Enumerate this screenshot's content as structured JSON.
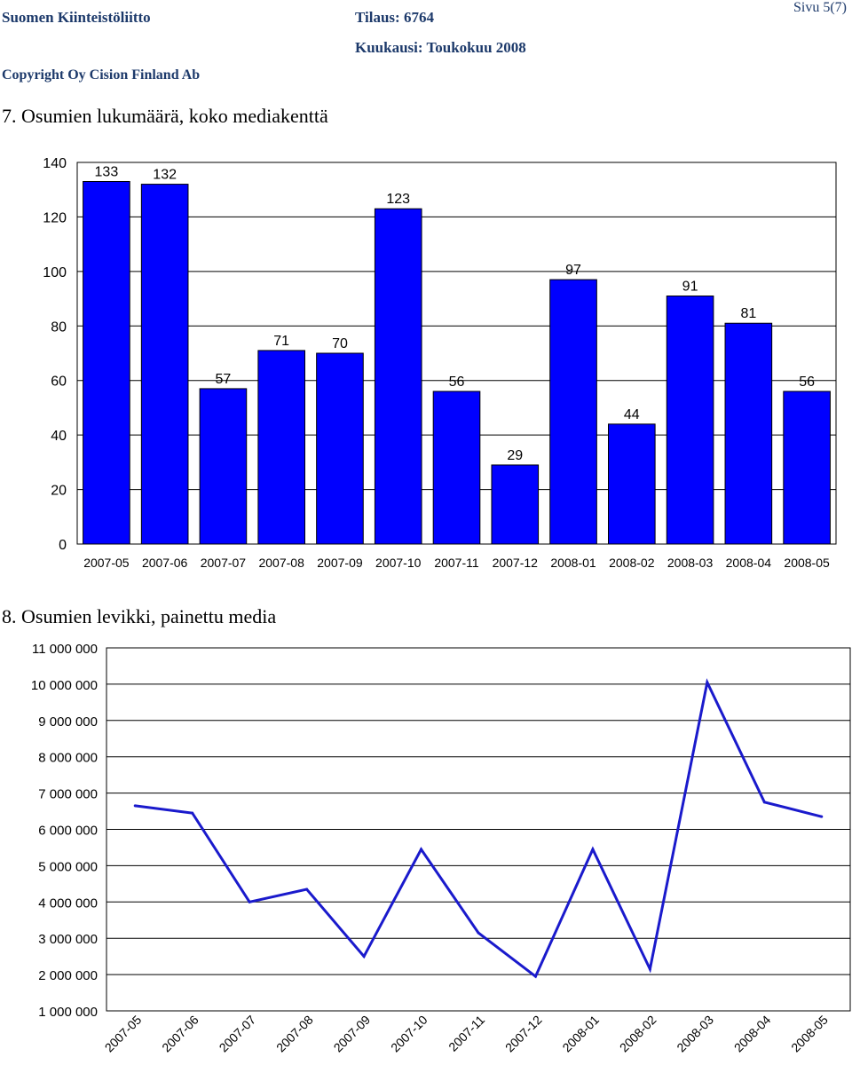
{
  "header": {
    "org": "Suomen Kiinteistöliitto",
    "order": "Tilaus: 6764",
    "month": "Kuukausi: Toukokuu 2008",
    "copyright": "Copyright Oy Cision Finland Ab",
    "page": "Sivu 5(7)"
  },
  "sections": {
    "s7_title": "7. Osumien lukumäärä, koko mediakenttä",
    "s8_title": "8. Osumien levikki, painettu media"
  },
  "colors": {
    "bar_fill": "#0000ff",
    "line_stroke": "#1a1acc",
    "header_text": "#1d3a6b"
  },
  "chart_data": [
    {
      "type": "bar",
      "title": "7. Osumien lukumäärä, koko mediakenttä",
      "categories": [
        "2007-05",
        "2007-06",
        "2007-07",
        "2007-08",
        "2007-09",
        "2007-10",
        "2007-11",
        "2007-12",
        "2008-01",
        "2008-02",
        "2008-03",
        "2008-04",
        "2008-05"
      ],
      "values": [
        133,
        132,
        57,
        71,
        70,
        123,
        56,
        29,
        97,
        44,
        91,
        81,
        56
      ],
      "ylim": [
        0,
        140
      ],
      "yticks": [
        0,
        20,
        40,
        60,
        80,
        100,
        120,
        140
      ],
      "grid": true,
      "data_labels": true
    },
    {
      "type": "line",
      "title": "8. Osumien levikki, painettu media",
      "categories": [
        "2007-05",
        "2007-06",
        "2007-07",
        "2007-08",
        "2007-09",
        "2007-10",
        "2007-11",
        "2007-12",
        "2008-01",
        "2008-02",
        "2008-03",
        "2008-04",
        "2008-05"
      ],
      "values": [
        6650000,
        6450000,
        4000000,
        4350000,
        2500000,
        5450000,
        3150000,
        1950000,
        5450000,
        2150000,
        10050000,
        6750000,
        6350000
      ],
      "ylim": [
        1000000,
        11000000
      ],
      "yticks": [
        1000000,
        2000000,
        3000000,
        4000000,
        5000000,
        6000000,
        7000000,
        8000000,
        9000000,
        10000000,
        11000000
      ],
      "ytick_labels": [
        "1 000 000",
        "2 000 000",
        "3 000 000",
        "4 000 000",
        "5 000 000",
        "6 000 000",
        "7 000 000",
        "8 000 000",
        "9 000 000",
        "10 000 000",
        "11 000 000"
      ],
      "grid": true
    }
  ]
}
